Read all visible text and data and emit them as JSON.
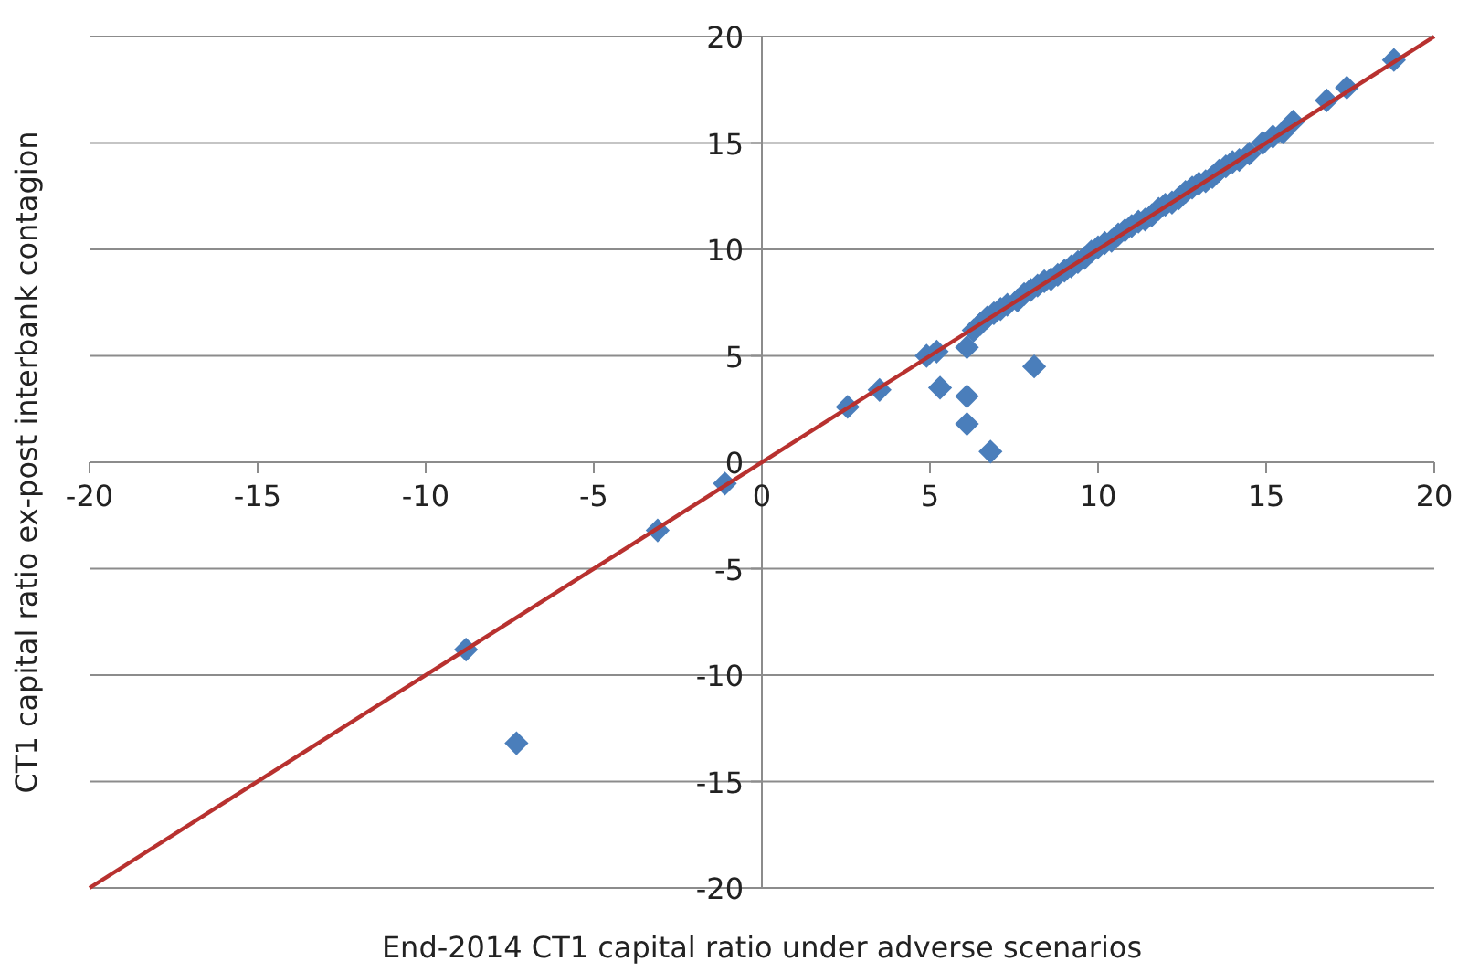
{
  "chart_data": {
    "type": "scatter",
    "xlabel": "End-2014 CT1 capital ratio under adverse scenarios",
    "ylabel": "CT1 capital ratio ex-post interbank contagion",
    "xlim": [
      -20,
      20
    ],
    "ylim": [
      -20,
      20
    ],
    "xticks": [
      -20,
      -15,
      -10,
      -5,
      0,
      5,
      10,
      15,
      20
    ],
    "yticks": [
      -20,
      -15,
      -10,
      -5,
      0,
      5,
      10,
      15,
      20
    ],
    "grid": "y",
    "series": [
      {
        "color": "#4a7ebb",
        "marker": "diamond",
        "x": [
          -8.8,
          -7.3,
          -3.1,
          -1.1,
          2.55,
          3.5,
          4.9,
          5.2,
          5.3,
          6.1,
          6.1,
          6.8,
          8.1,
          6.1,
          6.3,
          6.5,
          6.7,
          6.9,
          7.1,
          7.3,
          7.6,
          7.8,
          8.0,
          8.2,
          8.4,
          8.6,
          8.8,
          9.0,
          9.2,
          9.4,
          9.6,
          9.8,
          10.0,
          10.2,
          10.4,
          10.6,
          10.8,
          11.0,
          11.2,
          11.4,
          11.6,
          11.8,
          12.0,
          12.2,
          12.4,
          12.6,
          12.8,
          13.0,
          13.2,
          13.4,
          13.6,
          13.8,
          14.0,
          14.2,
          14.5,
          14.9,
          15.2,
          15.5,
          15.8,
          16.8,
          17.4,
          18.8
        ],
        "values": [
          -8.8,
          -13.2,
          -3.2,
          -1.0,
          2.6,
          3.4,
          5.0,
          5.2,
          3.5,
          3.1,
          1.8,
          0.5,
          4.5,
          5.4,
          6.2,
          6.5,
          6.8,
          7.0,
          7.2,
          7.4,
          7.6,
          7.9,
          8.1,
          8.3,
          8.5,
          8.6,
          8.8,
          9.0,
          9.2,
          9.4,
          9.6,
          9.9,
          10.1,
          10.3,
          10.4,
          10.7,
          10.9,
          11.1,
          11.3,
          11.4,
          11.6,
          11.9,
          12.1,
          12.2,
          12.4,
          12.7,
          12.9,
          13.1,
          13.2,
          13.4,
          13.7,
          13.9,
          14.1,
          14.2,
          14.5,
          15.0,
          15.3,
          15.5,
          16.0,
          17.0,
          17.6,
          18.9
        ]
      },
      {
        "type": "line",
        "color": "#b8312f",
        "x": [
          -20,
          20
        ],
        "values": [
          -20,
          20
        ]
      }
    ]
  }
}
